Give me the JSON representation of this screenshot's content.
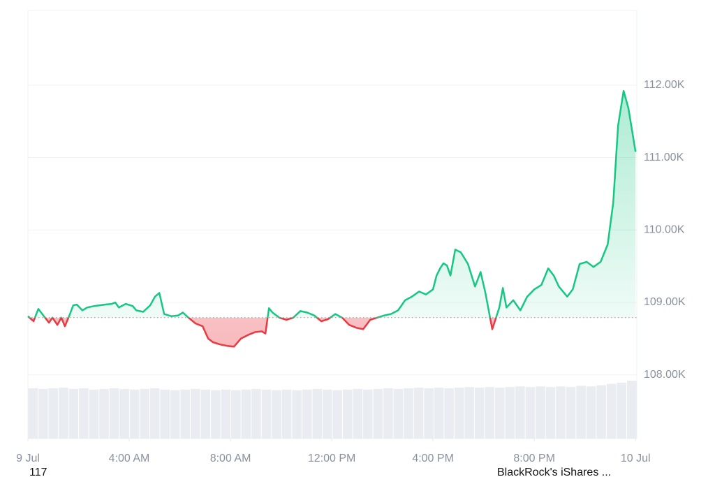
{
  "chart_data": {
    "type": "line",
    "baseline": 108790,
    "x": [
      0.0,
      0.22,
      0.41,
      0.61,
      0.83,
      0.97,
      1.16,
      1.32,
      1.46,
      1.66,
      1.79,
      1.93,
      2.15,
      2.34,
      2.62,
      3.03,
      3.31,
      3.45,
      3.59,
      3.86,
      4.14,
      4.28,
      4.55,
      4.83,
      5.02,
      5.19,
      5.38,
      5.66,
      5.93,
      6.12,
      6.34,
      6.62,
      6.9,
      7.12,
      7.31,
      7.59,
      7.86,
      8.14,
      8.41,
      8.69,
      8.97,
      9.24,
      9.38,
      9.52,
      9.66,
      9.93,
      10.21,
      10.48,
      10.76,
      11.03,
      11.31,
      11.59,
      11.86,
      12.14,
      12.41,
      12.69,
      12.97,
      13.24,
      13.52,
      13.79,
      14.07,
      14.34,
      14.62,
      14.9,
      15.17,
      15.45,
      15.72,
      16.0,
      16.14,
      16.28,
      16.41,
      16.55,
      16.69,
      16.88,
      17.1,
      17.38,
      17.66,
      17.88,
      18.07,
      18.34,
      18.62,
      18.76,
      18.9,
      19.17,
      19.45,
      19.72,
      20.0,
      20.28,
      20.55,
      20.77,
      20.97,
      21.3,
      21.52,
      21.79,
      22.07,
      22.34,
      22.62,
      22.9,
      23.12,
      23.31,
      23.53,
      23.72,
      24.0
    ],
    "series": [
      {
        "color": "#16c784",
        "negative_color": "#ea3943",
        "values": [
          108810,
          108740,
          108910,
          108820,
          108720,
          108790,
          108690,
          108790,
          108670,
          108840,
          108960,
          108970,
          108890,
          108930,
          108950,
          108970,
          108980,
          109000,
          108930,
          108980,
          108950,
          108890,
          108870,
          108960,
          109080,
          109130,
          108840,
          108810,
          108820,
          108860,
          108790,
          108710,
          108670,
          108500,
          108450,
          108420,
          108400,
          108390,
          108500,
          108550,
          108590,
          108600,
          108570,
          108920,
          108860,
          108790,
          108760,
          108790,
          108880,
          108860,
          108820,
          108740,
          108770,
          108840,
          108790,
          108690,
          108650,
          108630,
          108760,
          108790,
          108820,
          108840,
          108890,
          109030,
          109080,
          109150,
          109110,
          109180,
          109370,
          109470,
          109540,
          109510,
          109370,
          109730,
          109690,
          109530,
          109220,
          109420,
          109130,
          108630,
          108930,
          109200,
          108930,
          109030,
          108890,
          109080,
          109180,
          109240,
          109470,
          109370,
          109220,
          109080,
          109180,
          109530,
          109560,
          109490,
          109560,
          109800,
          110380,
          111440,
          111920,
          111680,
          111080
        ]
      }
    ],
    "volume": {
      "color": "#e9ecf0",
      "vlim": [
        0,
        100
      ],
      "values": [
        80,
        79,
        80,
        81,
        79,
        80,
        78,
        79,
        80,
        79,
        78,
        79,
        80,
        78,
        77,
        78,
        79,
        78,
        77,
        78,
        77,
        78,
        79,
        78,
        77,
        78,
        77,
        78,
        79,
        78,
        77,
        78,
        79,
        78,
        79,
        80,
        79,
        80,
        81,
        80,
        81,
        80,
        81,
        82,
        81,
        82,
        81,
        82,
        83,
        82,
        83,
        82,
        83,
        82,
        84,
        83,
        85,
        87,
        89,
        92
      ]
    },
    "xlim": [
      0,
      24.05
    ],
    "ylim": [
      107120,
      113030
    ],
    "xticks": [
      {
        "value": 0,
        "label": "9 Jul"
      },
      {
        "value": 4,
        "label": "4:00 AM"
      },
      {
        "value": 8,
        "label": "8:00 AM"
      },
      {
        "value": 12,
        "label": "12:00 PM"
      },
      {
        "value": 16,
        "label": "4:00 PM"
      },
      {
        "value": 20,
        "label": "8:00 PM"
      },
      {
        "value": 24,
        "label": "10 Jul"
      }
    ],
    "yticks": [
      {
        "value": 108000,
        "label": "108.00K"
      },
      {
        "value": 109000,
        "label": "109.00K"
      },
      {
        "value": 110000,
        "label": "110.00K"
      },
      {
        "value": 111000,
        "label": "111.00K"
      },
      {
        "value": 112000,
        "label": "112.00K"
      }
    ],
    "grid": true,
    "footer_left": "117",
    "footer_right": "BlackRock's iShares ..."
  }
}
